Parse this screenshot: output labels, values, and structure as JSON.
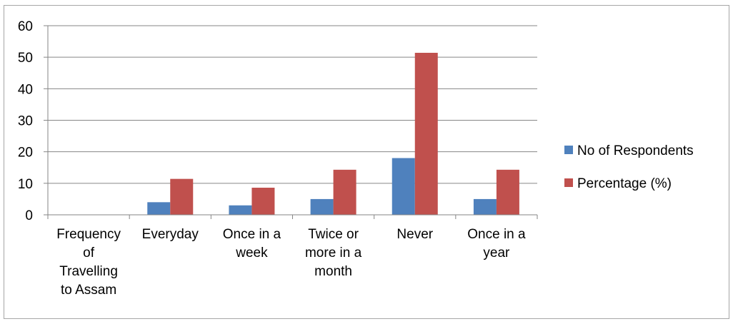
{
  "chart_data": {
    "type": "bar",
    "categories": [
      [
        "Frequency",
        "of",
        "Travelling",
        "to Assam"
      ],
      [
        "Everyday"
      ],
      [
        "Once in a",
        "week"
      ],
      [
        "Twice or",
        "more in a",
        "month"
      ],
      [
        "Never"
      ],
      [
        "Once in a",
        "year"
      ]
    ],
    "series": [
      {
        "name": "No of Respondents",
        "color": "#4f81bd",
        "values": [
          0,
          4,
          3,
          5,
          18,
          5
        ]
      },
      {
        "name": "Percentage (%)",
        "color": "#c0504d",
        "values": [
          0,
          11.4,
          8.6,
          14.3,
          51.4,
          14.3
        ]
      }
    ],
    "ylim": [
      0,
      60
    ],
    "yticks": [
      0,
      10,
      20,
      30,
      40,
      50,
      60
    ],
    "grid": true,
    "legend_position": "right",
    "title": "",
    "xlabel": "",
    "ylabel": ""
  }
}
